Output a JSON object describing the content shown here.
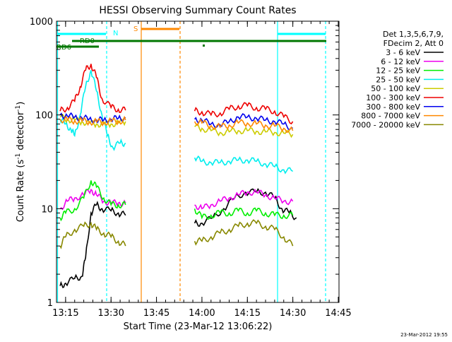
{
  "chart_data": {
    "type": "line",
    "title": "HESSI Observing Summary Count Rates",
    "xlabel": "Start Time (23-Mar-12 13:06:22)",
    "ylabel": "Count Rate (s",
    "ylabel_sup1": "-1",
    "ylabel_mid": " detector",
    "ylabel_sup2": "-1",
    "ylabel_end": ")",
    "y_scale": "log",
    "ylim": [
      1,
      1000
    ],
    "xlim_minutes": [
      13.2,
      14.754
    ],
    "x_ticks": [
      {
        "label": "13:15",
        "value": 13.25
      },
      {
        "label": "13:30",
        "value": 13.5
      },
      {
        "label": "13:45",
        "value": 13.75
      },
      {
        "label": "14:00",
        "value": 14.0
      },
      {
        "label": "14:15",
        "value": 14.25
      },
      {
        "label": "14:30",
        "value": 14.5
      },
      {
        "label": "14:45",
        "value": 14.75
      }
    ],
    "y_ticks": [
      {
        "label": "1",
        "value": 1
      },
      {
        "label": "10",
        "value": 10
      },
      {
        "label": "100",
        "value": 100
      },
      {
        "label": "1000",
        "value": 1000
      }
    ],
    "legend_title": [
      "Det 1,3,5,6,7,9,",
      "FDecim 2, Att 0"
    ],
    "legend_placement": "right",
    "series": [
      {
        "name": "3 - 6 keV",
        "color": "#000000",
        "segments": [
          [
            [
              13.22,
              1.5
            ],
            [
              13.25,
              1.6
            ],
            [
              13.3,
              1.8
            ],
            [
              13.34,
              1.9
            ],
            [
              13.36,
              3
            ],
            [
              13.39,
              9
            ],
            [
              13.42,
              11
            ],
            [
              13.45,
              10
            ],
            [
              13.5,
              9.5
            ],
            [
              13.54,
              9
            ],
            [
              13.58,
              8.5
            ]
          ],
          [
            [
              13.96,
              7
            ],
            [
              14.0,
              7
            ],
            [
              14.06,
              8
            ],
            [
              14.12,
              10
            ],
            [
              14.18,
              13
            ],
            [
              14.24,
              15
            ],
            [
              14.3,
              15
            ],
            [
              14.35,
              15
            ],
            [
              14.4,
              13
            ],
            [
              14.44,
              10
            ],
            [
              14.48,
              9
            ],
            [
              14.52,
              8
            ]
          ]
        ]
      },
      {
        "name": "6 - 12 keV",
        "color": "#ee00ee",
        "segments": [
          [
            [
              13.22,
              10
            ],
            [
              13.26,
              12
            ],
            [
              13.3,
              13
            ],
            [
              13.35,
              14
            ],
            [
              13.39,
              16
            ],
            [
              13.42,
              14
            ],
            [
              13.46,
              12
            ],
            [
              13.5,
              11.5
            ],
            [
              13.54,
              11.5
            ],
            [
              13.58,
              11.5
            ]
          ],
          [
            [
              13.96,
              11
            ],
            [
              14.0,
              10
            ],
            [
              14.05,
              11
            ],
            [
              14.1,
              12
            ],
            [
              14.15,
              13
            ],
            [
              14.2,
              14
            ],
            [
              14.25,
              15
            ],
            [
              14.3,
              15
            ],
            [
              14.35,
              14
            ],
            [
              14.4,
              13
            ],
            [
              14.45,
              12
            ],
            [
              14.5,
              12
            ]
          ]
        ]
      },
      {
        "name": "12 - 25 keV",
        "color": "#00ee00",
        "segments": [
          [
            [
              13.22,
              8
            ],
            [
              13.25,
              9
            ],
            [
              13.3,
              10
            ],
            [
              13.35,
              13
            ],
            [
              13.39,
              20
            ],
            [
              13.42,
              17
            ],
            [
              13.46,
              13
            ],
            [
              13.5,
              11
            ],
            [
              13.54,
              11
            ],
            [
              13.58,
              11
            ]
          ],
          [
            [
              13.96,
              10
            ],
            [
              14.0,
              8
            ],
            [
              14.05,
              8.5
            ],
            [
              14.1,
              9
            ],
            [
              14.15,
              9
            ],
            [
              14.2,
              9.5
            ],
            [
              14.25,
              9
            ],
            [
              14.3,
              9.5
            ],
            [
              14.35,
              9
            ],
            [
              14.4,
              8.5
            ],
            [
              14.45,
              8.5
            ],
            [
              14.5,
              8.5
            ]
          ]
        ]
      },
      {
        "name": "25 - 50 keV",
        "color": "#00eeee",
        "segments": [
          [
            [
              13.22,
              90
            ],
            [
              13.25,
              80
            ],
            [
              13.28,
              70
            ],
            [
              13.3,
              60
            ],
            [
              13.33,
              100
            ],
            [
              13.36,
              200
            ],
            [
              13.39,
              300
            ],
            [
              13.42,
              180
            ],
            [
              13.45,
              100
            ],
            [
              13.48,
              60
            ],
            [
              13.51,
              45
            ],
            [
              13.55,
              50
            ],
            [
              13.58,
              50
            ]
          ],
          [
            [
              13.96,
              35
            ],
            [
              14.0,
              32
            ],
            [
              14.05,
              31
            ],
            [
              14.1,
              31
            ],
            [
              14.15,
              32
            ],
            [
              14.2,
              33
            ],
            [
              14.25,
              33
            ],
            [
              14.3,
              32
            ],
            [
              14.35,
              30
            ],
            [
              14.4,
              28
            ],
            [
              14.45,
              26
            ],
            [
              14.5,
              25
            ]
          ]
        ]
      },
      {
        "name": "50 - 100 keV",
        "color": "#cccc00",
        "segments": [
          [
            [
              13.22,
              95
            ],
            [
              13.26,
              90
            ],
            [
              13.3,
              88
            ],
            [
              13.34,
              85
            ],
            [
              13.38,
              82
            ],
            [
              13.42,
              80
            ],
            [
              13.46,
              80
            ],
            [
              13.5,
              80
            ],
            [
              13.54,
              82
            ],
            [
              13.58,
              85
            ]
          ],
          [
            [
              13.96,
              75
            ],
            [
              14.0,
              72
            ],
            [
              14.05,
              68
            ],
            [
              14.1,
              65
            ],
            [
              14.15,
              66
            ],
            [
              14.2,
              68
            ],
            [
              14.25,
              68
            ],
            [
              14.3,
              67
            ],
            [
              14.35,
              66
            ],
            [
              14.4,
              65
            ],
            [
              14.45,
              64
            ],
            [
              14.5,
              62
            ]
          ]
        ]
      },
      {
        "name": "100 - 300 keV",
        "color": "#ee0000",
        "segments": [
          [
            [
              13.22,
              110
            ],
            [
              13.26,
              120
            ],
            [
              13.3,
              140
            ],
            [
              13.33,
              200
            ],
            [
              13.36,
              300
            ],
            [
              13.39,
              350
            ],
            [
              13.42,
              250
            ],
            [
              13.45,
              150
            ],
            [
              13.5,
              120
            ],
            [
              13.54,
              115
            ],
            [
              13.58,
              112
            ]
          ],
          [
            [
              13.96,
              110
            ],
            [
              14.0,
              108
            ],
            [
              14.05,
              100
            ],
            [
              14.1,
              105
            ],
            [
              14.15,
              115
            ],
            [
              14.2,
              125
            ],
            [
              14.25,
              125
            ],
            [
              14.3,
              120
            ],
            [
              14.35,
              115
            ],
            [
              14.4,
              110
            ],
            [
              14.45,
              95
            ],
            [
              14.5,
              85
            ]
          ]
        ]
      },
      {
        "name": "300 - 800 keV",
        "color": "#0000ee",
        "segments": [
          [
            [
              13.22,
              100
            ],
            [
              13.26,
              98
            ],
            [
              13.3,
              95
            ],
            [
              13.34,
              93
            ],
            [
              13.38,
              90
            ],
            [
              13.42,
              88
            ],
            [
              13.46,
              88
            ],
            [
              13.5,
              90
            ],
            [
              13.54,
              92
            ],
            [
              13.58,
              93
            ]
          ],
          [
            [
              13.96,
              90
            ],
            [
              14.0,
              88
            ],
            [
              14.05,
              80
            ],
            [
              14.1,
              78
            ],
            [
              14.15,
              85
            ],
            [
              14.2,
              95
            ],
            [
              14.25,
              95
            ],
            [
              14.3,
              92
            ],
            [
              14.35,
              88
            ],
            [
              14.4,
              85
            ],
            [
              14.45,
              80
            ],
            [
              14.5,
              72
            ]
          ]
        ]
      },
      {
        "name": "800 - 7000 keV",
        "color": "#ff8800",
        "segments": [
          [
            [
              13.22,
              90
            ],
            [
              13.26,
              88
            ],
            [
              13.3,
              87
            ],
            [
              13.34,
              86
            ],
            [
              13.38,
              85
            ],
            [
              13.42,
              84
            ],
            [
              13.46,
              84
            ],
            [
              13.5,
              85
            ],
            [
              13.54,
              86
            ],
            [
              13.58,
              88
            ]
          ],
          [
            [
              13.96,
              85
            ],
            [
              14.0,
              82
            ],
            [
              14.05,
              77
            ],
            [
              14.1,
              74
            ],
            [
              14.15,
              78
            ],
            [
              14.2,
              82
            ],
            [
              14.25,
              82
            ],
            [
              14.3,
              80
            ],
            [
              14.35,
              78
            ],
            [
              14.4,
              76
            ],
            [
              14.45,
              72
            ],
            [
              14.5,
              68
            ]
          ]
        ]
      },
      {
        "name": "7000 - 20000 keV",
        "color": "#888800",
        "segments": [
          [
            [
              13.22,
              4
            ],
            [
              13.25,
              5
            ],
            [
              13.3,
              6
            ],
            [
              13.35,
              6.5
            ],
            [
              13.39,
              7
            ],
            [
              13.42,
              6
            ],
            [
              13.46,
              5.5
            ],
            [
              13.5,
              5
            ],
            [
              13.54,
              4.5
            ],
            [
              13.58,
              4
            ]
          ],
          [
            [
              13.96,
              4.5
            ],
            [
              14.0,
              4.5
            ],
            [
              14.05,
              5
            ],
            [
              14.1,
              5.5
            ],
            [
              14.15,
              6
            ],
            [
              14.2,
              6.5
            ],
            [
              14.25,
              7
            ],
            [
              14.3,
              7
            ],
            [
              14.35,
              6.5
            ],
            [
              14.4,
              6
            ],
            [
              14.45,
              5
            ],
            [
              14.5,
              4
            ]
          ]
        ]
      }
    ],
    "annotations": [
      {
        "text": "N",
        "color": "#00ffff"
      },
      {
        "text": "S",
        "color": "#ff8800"
      },
      {
        "text": "RD0",
        "color": "#007700"
      },
      {
        "text": "RD6",
        "color": "#007700"
      }
    ],
    "footer_date": "23-Mar-2012 19:55"
  }
}
